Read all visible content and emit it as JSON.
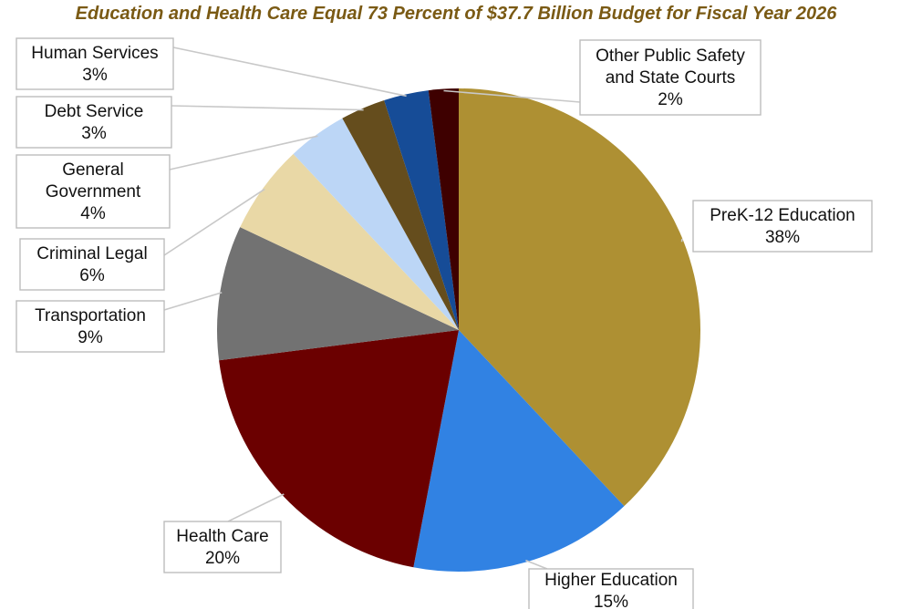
{
  "chart_data": {
    "type": "pie",
    "title": "Education and Health Care Equal 73 Percent of $37.7 Billion Budget for Fiscal Year 2026",
    "slices": [
      {
        "label": "PreK-12 Education",
        "value": 38,
        "display": "38%",
        "color": "#ae9033"
      },
      {
        "label": "Higher Education",
        "value": 15,
        "display": "15%",
        "color": "#3182e3"
      },
      {
        "label": "Health Care",
        "value": 20,
        "display": "20%",
        "color": "#6b0000"
      },
      {
        "label": "Transportation",
        "value": 9,
        "display": "9%",
        "color": "#727272"
      },
      {
        "label": "Criminal Legal",
        "value": 6,
        "display": "6%",
        "color": "#e9d8a6"
      },
      {
        "label": "General Government",
        "value": 4,
        "display": "4%",
        "color": "#bcd6f6"
      },
      {
        "label": "Debt Service",
        "value": 3,
        "display": "3%",
        "color": "#654d1d"
      },
      {
        "label": "Human Services",
        "value": 3,
        "display": "3%",
        "color": "#164c97"
      },
      {
        "label": "Other Public Safety and State Courts",
        "value": 2,
        "display": "2%",
        "color": "#3e0000"
      }
    ]
  }
}
